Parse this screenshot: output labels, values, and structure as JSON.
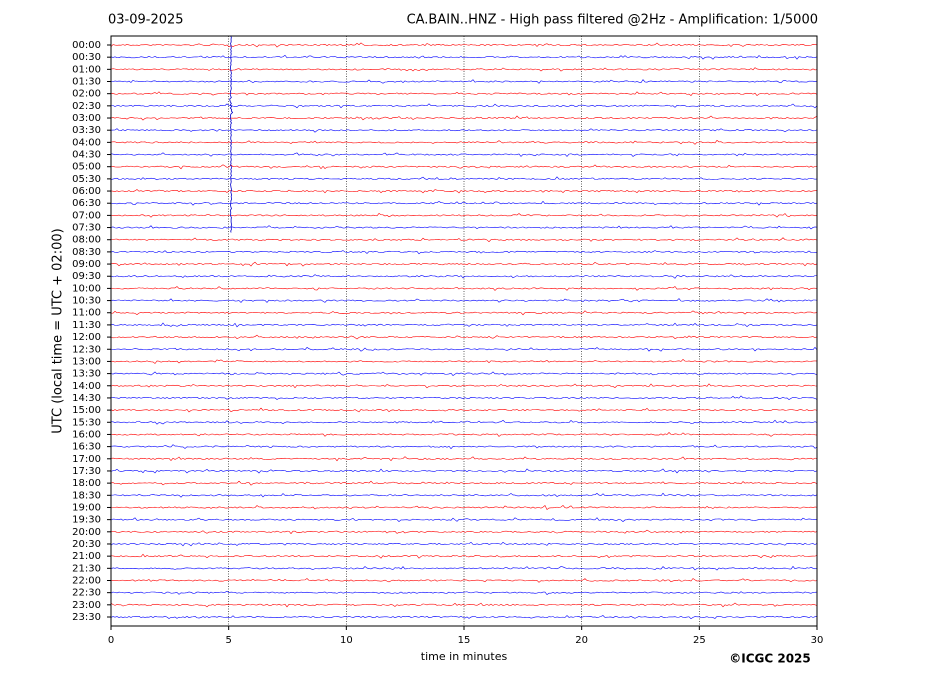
{
  "chart_data": {
    "type": "helicorder",
    "title_left": "03-09-2025",
    "title": "CA.BAIN..HNZ - High pass filtered @2Hz - Amplification: 1/5000",
    "y_label": "UTC (local time = UTC + 02:00)",
    "x_label": "time in minutes",
    "copyright": "©ICGC 2025",
    "categories": [
      "00:00",
      "00:30",
      "01:00",
      "01:30",
      "02:00",
      "02:30",
      "03:00",
      "03:30",
      "04:00",
      "04:30",
      "05:00",
      "05:30",
      "06:00",
      "06:30",
      "07:00",
      "07:30",
      "08:00",
      "08:30",
      "09:00",
      "09:30",
      "10:00",
      "10:30",
      "11:00",
      "11:30",
      "12:00",
      "12:30",
      "13:00",
      "13:30",
      "14:00",
      "14:30",
      "15:00",
      "15:30",
      "16:00",
      "16:30",
      "17:00",
      "17:30",
      "18:00",
      "18:30",
      "19:00",
      "19:30",
      "20:00",
      "20:30",
      "21:00",
      "21:30",
      "22:00",
      "22:30",
      "23:00",
      "23:30"
    ],
    "trace_colors": [
      "#ff0000",
      "#0000ff"
    ],
    "xlim": [
      0,
      30
    ],
    "xticks": [
      0,
      5,
      10,
      15,
      20,
      25,
      30
    ],
    "grid": true,
    "event_x": 5.1
  }
}
